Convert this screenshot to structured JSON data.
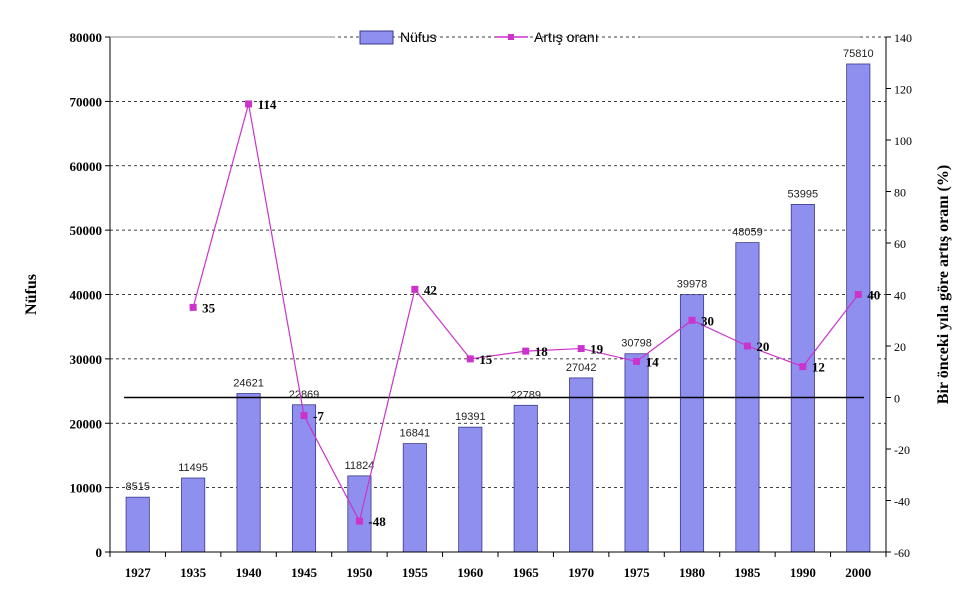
{
  "chart_data": {
    "type": "bar",
    "categories": [
      "1927",
      "1935",
      "1940",
      "1945",
      "1950",
      "1955",
      "1960",
      "1965",
      "1970",
      "1975",
      "1980",
      "1985",
      "1990",
      "2000"
    ],
    "series": [
      {
        "name": "Nüfus",
        "type": "bar",
        "axis": "left",
        "values": [
          8515,
          11495,
          24621,
          22869,
          11824,
          16841,
          19391,
          22789,
          27042,
          30798,
          39978,
          48059,
          53995,
          75810
        ],
        "labels": [
          "8515",
          "11495",
          "24621",
          "22869",
          "11824",
          "16841",
          "19391",
          "22789",
          "27042",
          "30798",
          "39978",
          "48059",
          "53995",
          "75810"
        ]
      },
      {
        "name": "Artış oranı",
        "type": "line",
        "axis": "right",
        "values": [
          null,
          35,
          114,
          -7,
          -48,
          42,
          15,
          18,
          19,
          14,
          30,
          20,
          12,
          40
        ],
        "labels": [
          null,
          "35",
          "114",
          "-7",
          "-48",
          "42",
          "15",
          "18",
          "19",
          "14",
          "30",
          "20",
          "12",
          "40"
        ]
      }
    ],
    "ylabel": "Nüfus",
    "y2label": "Bir önceki yıla göre artış oranı (%)",
    "ylim": [
      0,
      80000
    ],
    "y2lim": [
      -60,
      140
    ],
    "yticks": [
      "0",
      "10000",
      "20000",
      "30000",
      "40000",
      "50000",
      "60000",
      "70000",
      "80000"
    ],
    "y2ticks": [
      "-60",
      "-40",
      "-20",
      "0",
      "20",
      "40",
      "60",
      "80",
      "100",
      "120",
      "140"
    ],
    "grid": "dashed horizontal",
    "legend": "top-center",
    "colors": {
      "bar": "#8f8fef",
      "bar_edge": "#3a3a8a",
      "line": "#cc33cc",
      "zero_line": "#000000"
    }
  }
}
